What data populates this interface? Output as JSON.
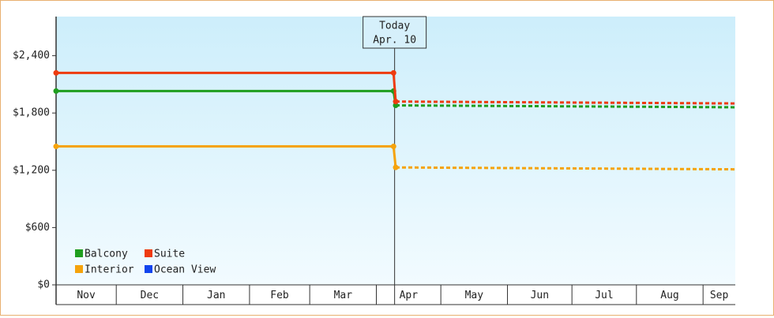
{
  "chart_data": {
    "type": "line",
    "x": [
      0,
      157,
      158,
      316
    ],
    "xlim": [
      0,
      316
    ],
    "xticks": [
      {
        "value": 0,
        "label": "Nov"
      },
      {
        "value": 28,
        "label": "Dec"
      },
      {
        "value": 59,
        "label": "Jan"
      },
      {
        "value": 90,
        "label": "Feb"
      },
      {
        "value": 118,
        "label": "Mar"
      },
      {
        "value": 149,
        "label": "Apr"
      },
      {
        "value": 179,
        "label": "May"
      },
      {
        "value": 210,
        "label": "Jun"
      },
      {
        "value": 240,
        "label": "Jul"
      },
      {
        "value": 270,
        "label": "Aug"
      },
      {
        "value": 301,
        "label": "Sep"
      }
    ],
    "ylim": [
      0,
      2810
    ],
    "yticks": [
      {
        "value": 0,
        "label": "$0"
      },
      {
        "value": 600,
        "label": "$600"
      },
      {
        "value": 1200,
        "label": "$1,200"
      },
      {
        "value": 1800,
        "label": "$1,800"
      },
      {
        "value": 2400,
        "label": "$2,400"
      }
    ],
    "today": {
      "label": "Today",
      "date": "Apr. 10",
      "x": 157.5
    },
    "legend": "lower left",
    "series": [
      {
        "name": "Balcony",
        "color": "#1f9e1f",
        "values": [
          2030,
          2030,
          1880,
          1860
        ]
      },
      {
        "name": "Suite",
        "color": "#ee3b0f",
        "values": [
          2220,
          2220,
          1920,
          1900
        ]
      },
      {
        "name": "Interior",
        "color": "#f5a30c",
        "values": [
          1450,
          1450,
          1230,
          1210
        ]
      },
      {
        "name": "Ocean View",
        "color": "#1144ee",
        "values": [
          null,
          null,
          null,
          null
        ]
      }
    ]
  }
}
